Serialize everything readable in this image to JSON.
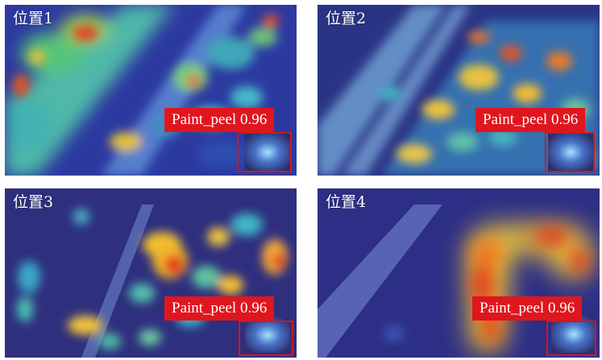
{
  "panels": [
    {
      "label": "位置1",
      "detection": {
        "class_label": "Paint_peel 0.96"
      }
    },
    {
      "label": "位置2",
      "detection": {
        "class_label": "Paint_peel 0.96"
      }
    },
    {
      "label": "位置3",
      "detection": {
        "class_label": "Paint_peel 0.96"
      }
    },
    {
      "label": "位置4",
      "detection": {
        "class_label": "Paint_peel 0.96"
      }
    }
  ],
  "colors": {
    "heatmap_cold": "#2b2f8a",
    "heatmap_mid": "#2fb6c9",
    "heatmap_warm": "#f2c12e",
    "heatmap_hot": "#e32a12",
    "badge": "#e0161e",
    "box": "#d0161f"
  }
}
